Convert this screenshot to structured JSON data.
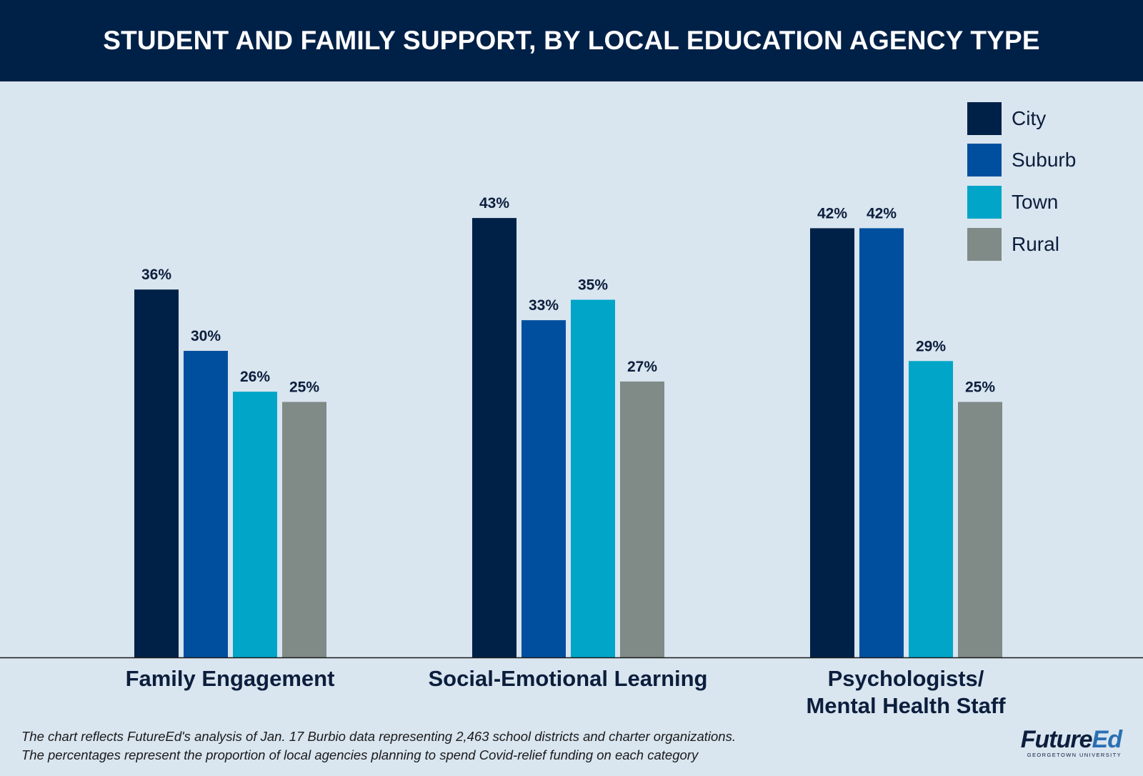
{
  "title": "STUDENT AND FAMILY SUPPORT, BY LOCAL EDUCATION AGENCY TYPE",
  "colors": {
    "header_bg": "#002147",
    "background": "#d9e5ef",
    "city": "#002147",
    "suburb": "#004f9f",
    "town": "#00a5c8",
    "rural": "#808a87"
  },
  "chart_data": {
    "type": "bar",
    "title": "STUDENT AND FAMILY SUPPORT, BY LOCAL EDUCATION AGENCY TYPE",
    "categories": [
      "Family Engagement",
      "Social-Emotional Learning",
      "Psychologists/ Mental Health Staff"
    ],
    "category_lines": [
      [
        "Family Engagement"
      ],
      [
        "Social-Emotional Learning"
      ],
      [
        "Psychologists/",
        "Mental Health Staff"
      ]
    ],
    "series": [
      {
        "name": "City",
        "values": [
          36,
          43,
          42
        ],
        "labels": [
          "36%",
          "43%",
          "42%"
        ],
        "color": "#002147"
      },
      {
        "name": "Suburb",
        "values": [
          30,
          33,
          42
        ],
        "labels": [
          "30%",
          "33%",
          "42%"
        ],
        "color": "#004f9f"
      },
      {
        "name": "Town",
        "values": [
          26,
          35,
          29
        ],
        "labels": [
          "26%",
          "35%",
          "29%"
        ],
        "color": "#00a5c8"
      },
      {
        "name": "Rural",
        "values": [
          25,
          27,
          25
        ],
        "labels": [
          "25%",
          "27%",
          "25%"
        ],
        "color": "#808a87"
      }
    ],
    "xlabel": "",
    "ylabel": "",
    "ylim": [
      0,
      50
    ],
    "grid": false,
    "legend": "top-right"
  },
  "footnote": {
    "line1": "The chart reflects FutureEd's analysis of Jan. 17 Burbio data representing 2,463 school districts and charter organizations.",
    "line2": "The percentages represent the proportion of local agencies planning to spend Covid-relief funding on each category"
  },
  "brand": {
    "name_part1": "Future",
    "name_part2": "Ed",
    "subtitle": "GEORGETOWN UNIVERSITY"
  }
}
